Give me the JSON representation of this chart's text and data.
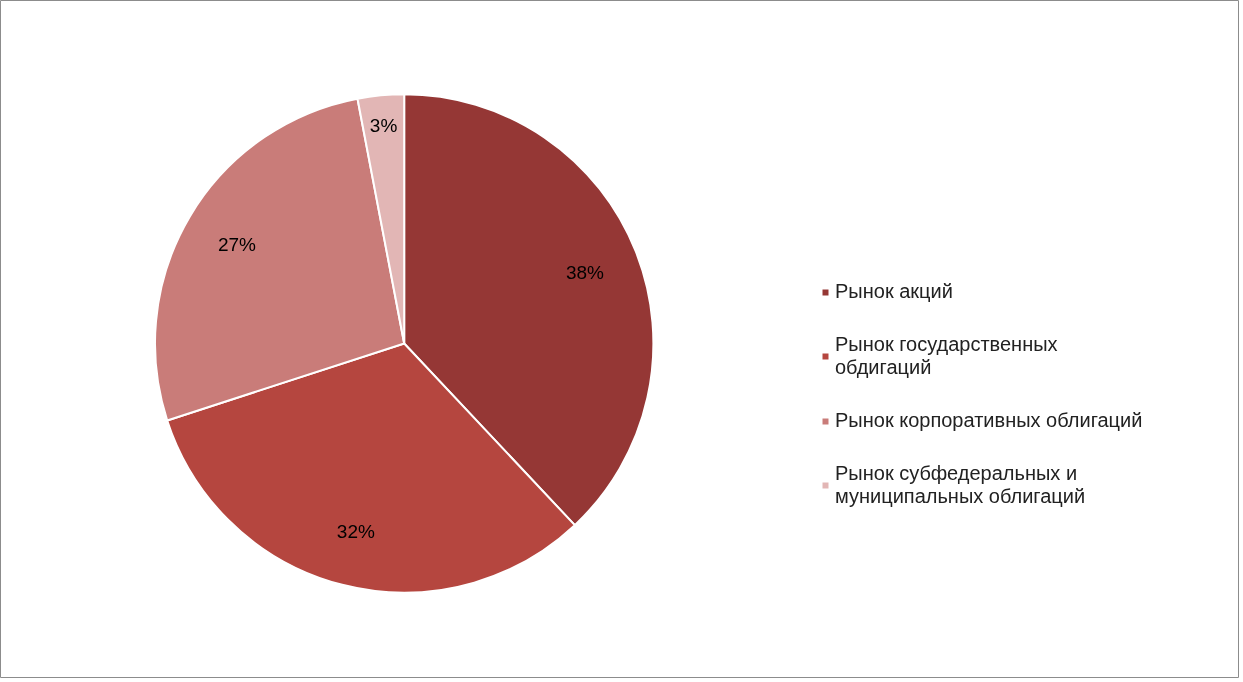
{
  "chart_data": {
    "type": "pie",
    "categories": [
      "Рынок акций",
      "Рынок государственных обдигаций",
      "Рынок корпоративных облигаций",
      "Рынок субфедеральных и муниципальных облигаций"
    ],
    "values": [
      38,
      32,
      27,
      3
    ],
    "colors": [
      "#953735",
      "#b5463f",
      "#c97c79",
      "#e2b6b5"
    ],
    "value_labels": [
      "38%",
      "32%",
      "27%",
      "3%"
    ],
    "legend": "right"
  }
}
